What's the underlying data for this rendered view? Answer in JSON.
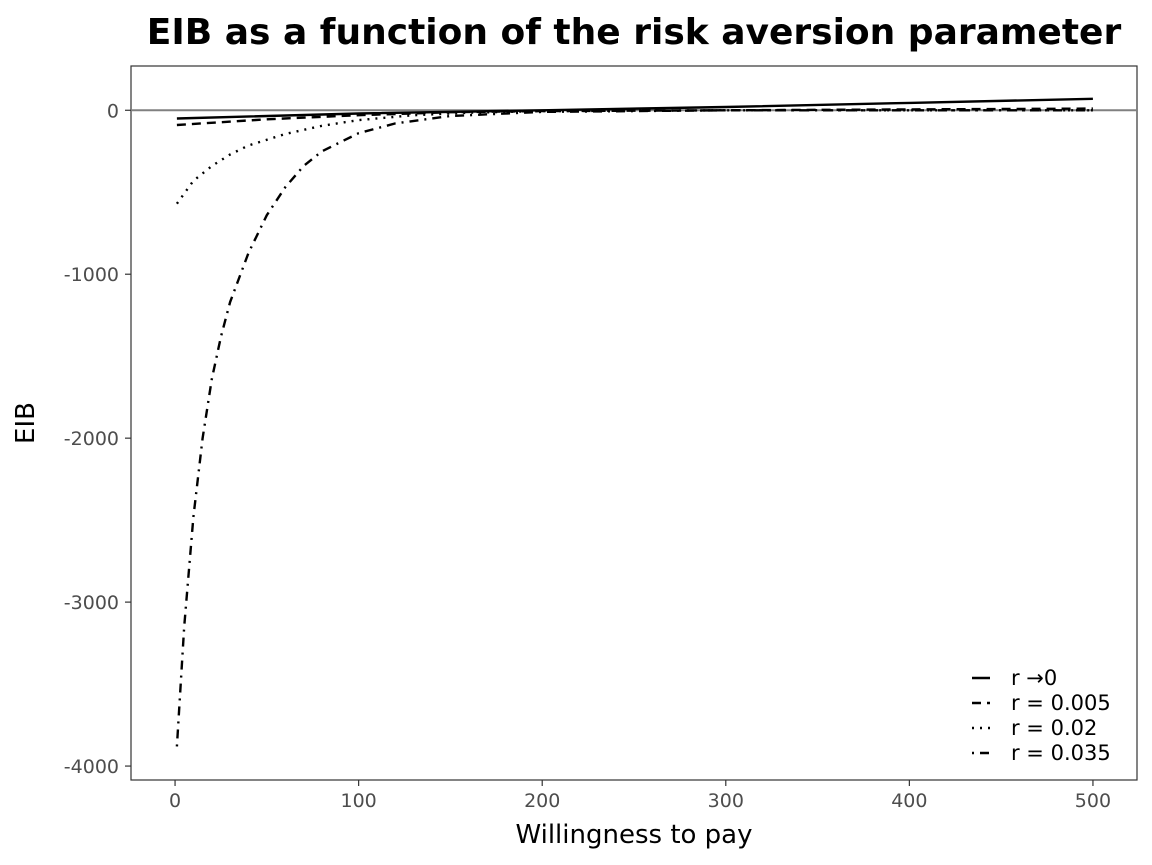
{
  "chart_data": {
    "type": "line",
    "title": "EIB as a function of the risk aversion parameter",
    "xlabel": "Willingness to pay",
    "ylabel": "EIB",
    "xlim": [
      -24,
      524
    ],
    "ylim": [
      -4085,
      270
    ],
    "xticks": [
      0,
      100,
      200,
      300,
      400,
      500
    ],
    "yticks": [
      0,
      -1000,
      -2000,
      -3000,
      -4000
    ],
    "xtick_labels": [
      "0",
      "100",
      "200",
      "300",
      "400",
      "500"
    ],
    "ytick_labels": [
      "0",
      "-1000",
      "-2000",
      "-3000",
      "-4000"
    ],
    "reference_line": {
      "y": 0,
      "color": "#808080"
    },
    "grid": false,
    "legend_position": "bottom-right",
    "series": [
      {
        "name": "r →0",
        "dash": "solid",
        "color": "#000000",
        "x": [
          1,
          100,
          200,
          300,
          400,
          500
        ],
        "y": [
          -50,
          -20,
          0,
          20,
          45,
          70
        ]
      },
      {
        "name": "r = 0.005",
        "dash": "dashed",
        "color": "#000000",
        "x": [
          1,
          50,
          100,
          150,
          200,
          300,
          400,
          500
        ],
        "y": [
          -90,
          -55,
          -30,
          -12,
          -5,
          0,
          5,
          10
        ]
      },
      {
        "name": "r = 0.02",
        "dash": "dotted",
        "color": "#000000",
        "x": [
          1,
          10,
          20,
          30,
          40,
          60,
          80,
          100,
          130,
          160,
          200,
          300,
          400,
          500
        ],
        "y": [
          -570,
          -430,
          -340,
          -270,
          -215,
          -145,
          -95,
          -60,
          -30,
          -15,
          -5,
          0,
          0,
          0
        ]
      },
      {
        "name": "r = 0.035",
        "dash": "dotdash",
        "color": "#000000",
        "x": [
          1,
          5,
          10,
          15,
          20,
          25,
          30,
          40,
          50,
          60,
          70,
          80,
          100,
          120,
          150,
          200,
          300,
          400,
          500
        ],
        "y": [
          -3880,
          -3150,
          -2480,
          -2000,
          -1640,
          -1380,
          -1170,
          -870,
          -640,
          -470,
          -340,
          -250,
          -140,
          -80,
          -35,
          -10,
          0,
          0,
          0
        ]
      }
    ]
  }
}
